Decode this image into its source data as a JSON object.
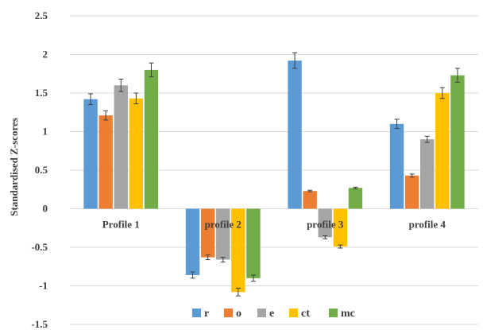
{
  "chart_data": {
    "type": "bar",
    "title": "",
    "xlabel": "",
    "ylabel": "Standardised Z-scores",
    "ylim": [
      -1.5,
      2.5
    ],
    "yticks": [
      2.5,
      2,
      1.5,
      1,
      0.5,
      0,
      -0.5,
      -1,
      -1.5
    ],
    "grid": true,
    "legend_position": "bottom",
    "categories": [
      "Profile 1",
      "profile 2",
      "profile 3",
      "profile 4"
    ],
    "series": [
      {
        "name": "r",
        "color": "#5B9BD5",
        "values": [
          1.42,
          -0.86,
          1.92,
          1.1
        ],
        "errors": [
          0.07,
          0.04,
          0.1,
          0.06
        ]
      },
      {
        "name": "o",
        "color": "#ED7D31",
        "values": [
          1.21,
          -0.63,
          0.23,
          0.43
        ],
        "errors": [
          0.06,
          0.03,
          0.01,
          0.02
        ]
      },
      {
        "name": "e",
        "color": "#A5A5A5",
        "values": [
          1.6,
          -0.66,
          -0.37,
          0.9
        ],
        "errors": [
          0.08,
          0.03,
          0.02,
          0.04
        ]
      },
      {
        "name": "ct",
        "color": "#FFC000",
        "values": [
          1.43,
          -1.08,
          -0.49,
          1.5
        ],
        "errors": [
          0.07,
          0.05,
          0.02,
          0.07
        ]
      },
      {
        "name": "mc",
        "color": "#70AD47",
        "values": [
          1.8,
          -0.9,
          0.27,
          1.73
        ],
        "errors": [
          0.09,
          0.04,
          0.01,
          0.09
        ]
      }
    ]
  }
}
